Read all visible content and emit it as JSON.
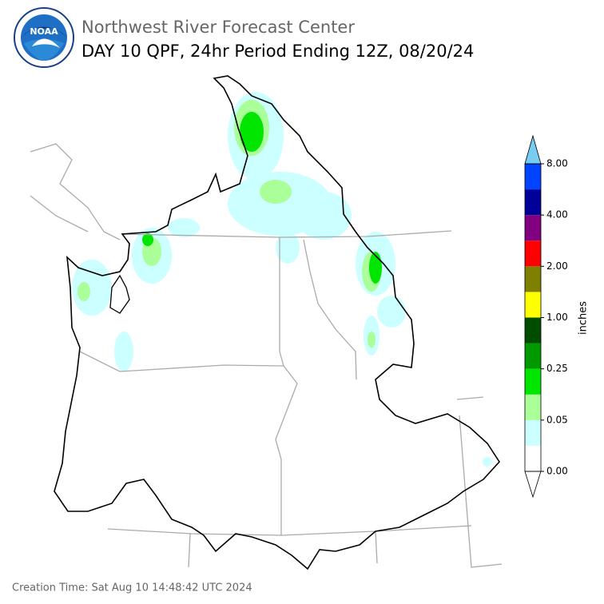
{
  "header": {
    "logo_text": "NOAA",
    "title": "Northwest River Forecast Center",
    "subtitle": "DAY 10 QPF, 24hr Period Ending 12Z, 08/20/24"
  },
  "colorbar": {
    "label": "inches",
    "ticks": [
      "0.00",
      "0.05",
      "0.25",
      "1.00",
      "2.00",
      "4.00",
      "8.00"
    ],
    "colors": [
      "#ffffff",
      "#ccffff",
      "#aaff99",
      "#00e600",
      "#009900",
      "#004d00",
      "#ffff00",
      "#808000",
      "#ff0000",
      "#800080",
      "#000099",
      "#0044ff"
    ],
    "under_color": "#ffffff",
    "over_color": "#77ccf2"
  },
  "footer": {
    "creation_time": "Creation Time: Sat Aug 10 14:48:42 UTC 2024"
  }
}
